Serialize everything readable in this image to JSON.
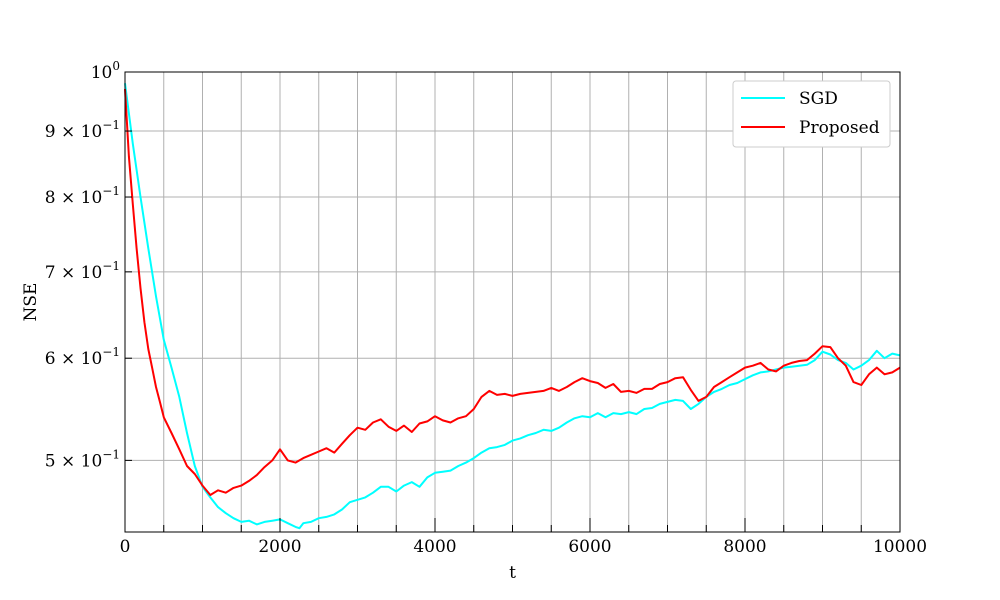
{
  "chart_data": {
    "type": "line",
    "title": "",
    "xlabel": "t",
    "ylabel": "NSE",
    "xlim": [
      0,
      10000
    ],
    "ylim": [
      0.44,
      1.0
    ],
    "yscale": "log",
    "grid": true,
    "legend_position": "top-right",
    "x_ticks": [
      0,
      2000,
      4000,
      6000,
      8000,
      10000
    ],
    "x_tick_labels": [
      "0",
      "2000",
      "4000",
      "6000",
      "8000",
      "10000"
    ],
    "x_minor_ticks": [
      500,
      1000,
      1500,
      2500,
      3000,
      3500,
      4500,
      5000,
      5500,
      6500,
      7000,
      7500,
      8500,
      9000,
      9500
    ],
    "y_ticks": [
      {
        "value": 1.0,
        "mantissa": "",
        "exponent": "0"
      },
      {
        "value": 0.9,
        "mantissa": "9",
        "exponent": "−1"
      },
      {
        "value": 0.8,
        "mantissa": "8",
        "exponent": "−1"
      },
      {
        "value": 0.7,
        "mantissa": "7",
        "exponent": "−1"
      },
      {
        "value": 0.6,
        "mantissa": "6",
        "exponent": "−1"
      },
      {
        "value": 0.5,
        "mantissa": "5",
        "exponent": "−1"
      }
    ],
    "series": [
      {
        "name": "SGD",
        "color": "#00ffff",
        "x": [
          0,
          100,
          200,
          300,
          400,
          500,
          600,
          700,
          800,
          900,
          1000,
          1100,
          1200,
          1300,
          1400,
          1500,
          1600,
          1700,
          1800,
          1900,
          2000,
          2100,
          2200,
          2250,
          2300,
          2400,
          2500,
          2600,
          2700,
          2800,
          2900,
          3000,
          3100,
          3200,
          3300,
          3400,
          3500,
          3600,
          3700,
          3800,
          3900,
          4000,
          4100,
          4200,
          4300,
          4400,
          4500,
          4600,
          4700,
          4800,
          4900,
          5000,
          5100,
          5200,
          5300,
          5400,
          5500,
          5600,
          5700,
          5800,
          5900,
          6000,
          6100,
          6200,
          6300,
          6400,
          6500,
          6600,
          6700,
          6800,
          6900,
          7000,
          7100,
          7200,
          7300,
          7400,
          7500,
          7600,
          7700,
          7800,
          7900,
          8000,
          8100,
          8200,
          8300,
          8400,
          8500,
          8600,
          8700,
          8800,
          8900,
          9000,
          9100,
          9200,
          9300,
          9400,
          9500,
          9600,
          9700,
          9800,
          9900,
          10000
        ],
        "values": [
          0.98,
          0.88,
          0.8,
          0.73,
          0.67,
          0.62,
          0.59,
          0.56,
          0.525,
          0.495,
          0.477,
          0.468,
          0.46,
          0.455,
          0.451,
          0.448,
          0.449,
          0.446,
          0.448,
          0.449,
          0.45,
          0.447,
          0.444,
          0.443,
          0.447,
          0.448,
          0.451,
          0.452,
          0.454,
          0.458,
          0.464,
          0.466,
          0.468,
          0.472,
          0.477,
          0.477,
          0.473,
          0.478,
          0.481,
          0.477,
          0.485,
          0.489,
          0.49,
          0.491,
          0.495,
          0.498,
          0.502,
          0.507,
          0.511,
          0.512,
          0.514,
          0.518,
          0.52,
          0.523,
          0.525,
          0.528,
          0.527,
          0.53,
          0.535,
          0.539,
          0.541,
          0.54,
          0.544,
          0.54,
          0.544,
          0.543,
          0.545,
          0.543,
          0.548,
          0.549,
          0.553,
          0.555,
          0.557,
          0.556,
          0.548,
          0.553,
          0.56,
          0.565,
          0.568,
          0.572,
          0.574,
          0.578,
          0.582,
          0.585,
          0.586,
          0.588,
          0.59,
          0.591,
          0.592,
          0.593,
          0.598,
          0.607,
          0.604,
          0.598,
          0.595,
          0.588,
          0.592,
          0.598,
          0.608,
          0.6,
          0.605,
          0.603
        ]
      },
      {
        "name": "Proposed",
        "color": "#ff0000",
        "x": [
          0,
          50,
          100,
          150,
          200,
          250,
          300,
          350,
          400,
          450,
          500,
          600,
          700,
          800,
          900,
          1000,
          1100,
          1200,
          1300,
          1400,
          1500,
          1600,
          1700,
          1800,
          1900,
          2000,
          2100,
          2200,
          2300,
          2400,
          2500,
          2600,
          2700,
          2800,
          2900,
          3000,
          3100,
          3200,
          3300,
          3400,
          3500,
          3600,
          3700,
          3800,
          3900,
          4000,
          4100,
          4200,
          4300,
          4400,
          4500,
          4600,
          4700,
          4800,
          4900,
          5000,
          5100,
          5200,
          5300,
          5400,
          5500,
          5600,
          5700,
          5800,
          5900,
          6000,
          6100,
          6200,
          6300,
          6400,
          6500,
          6600,
          6700,
          6800,
          6900,
          7000,
          7100,
          7200,
          7300,
          7400,
          7500,
          7600,
          7700,
          7800,
          7900,
          8000,
          8100,
          8200,
          8300,
          8400,
          8500,
          8600,
          8700,
          8800,
          8900,
          9000,
          9100,
          9200,
          9300,
          9400,
          9500,
          9600,
          9700,
          9800,
          9900,
          10000
        ],
        "values": [
          0.97,
          0.86,
          0.79,
          0.73,
          0.68,
          0.64,
          0.61,
          0.59,
          0.57,
          0.555,
          0.54,
          0.525,
          0.51,
          0.495,
          0.488,
          0.478,
          0.47,
          0.474,
          0.472,
          0.476,
          0.478,
          0.482,
          0.487,
          0.494,
          0.5,
          0.51,
          0.5,
          0.498,
          0.502,
          0.505,
          0.508,
          0.511,
          0.507,
          0.515,
          0.523,
          0.53,
          0.528,
          0.535,
          0.538,
          0.531,
          0.527,
          0.532,
          0.526,
          0.534,
          0.536,
          0.541,
          0.537,
          0.535,
          0.539,
          0.541,
          0.548,
          0.56,
          0.566,
          0.562,
          0.563,
          0.561,
          0.563,
          0.564,
          0.565,
          0.566,
          0.569,
          0.566,
          0.57,
          0.575,
          0.579,
          0.576,
          0.574,
          0.569,
          0.573,
          0.565,
          0.566,
          0.564,
          0.568,
          0.568,
          0.573,
          0.575,
          0.579,
          0.58,
          0.567,
          0.556,
          0.56,
          0.57,
          0.575,
          0.58,
          0.585,
          0.59,
          0.592,
          0.595,
          0.588,
          0.586,
          0.592,
          0.595,
          0.597,
          0.598,
          0.605,
          0.613,
          0.612,
          0.6,
          0.592,
          0.575,
          0.572,
          0.583,
          0.59,
          0.583,
          0.585,
          0.59
        ]
      }
    ]
  }
}
